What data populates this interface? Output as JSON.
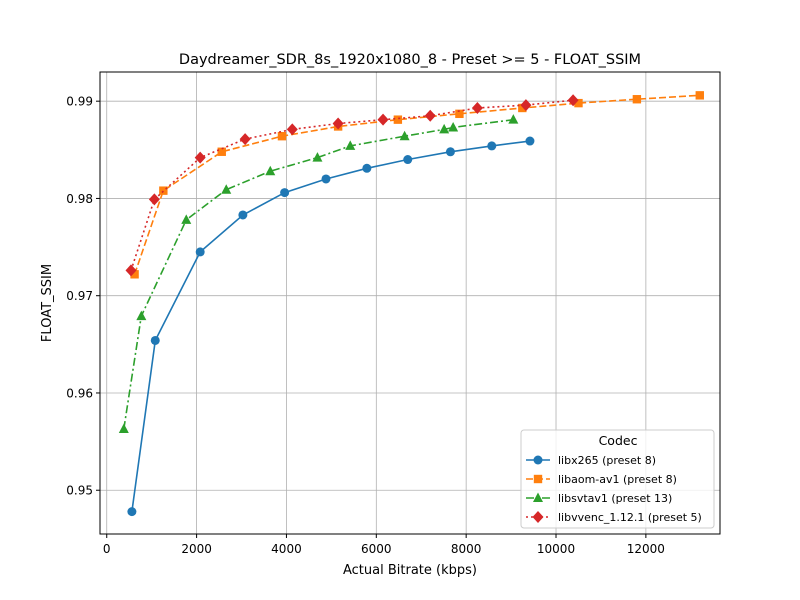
{
  "chart_data": {
    "type": "line",
    "title": "Daydreamer_SDR_8s_1920x1080_8 - Preset >= 5 - FLOAT_SSIM",
    "xlabel": "Actual Bitrate (kbps)",
    "ylabel": "FLOAT_SSIM",
    "xlim": [
      -150,
      13650
    ],
    "ylim": [
      0.9455,
      0.993
    ],
    "xticks": [
      0,
      2000,
      4000,
      6000,
      8000,
      10000,
      12000
    ],
    "yticks": [
      0.95,
      0.96,
      0.97,
      0.98,
      0.99
    ],
    "ytick_labels": [
      "0.95",
      "0.96",
      "0.97",
      "0.98",
      "0.99"
    ],
    "grid": true,
    "legend": {
      "title": "Codec",
      "placement": "lower right"
    },
    "series": [
      {
        "name": "libx265 (preset 8)",
        "color": "#1f77b4",
        "marker": "circle",
        "linestyle": "solid",
        "x": [
          560,
          1080,
          2080,
          3030,
          3960,
          4880,
          5790,
          6700,
          7650,
          8570,
          9420
        ],
        "y": [
          0.9478,
          0.9654,
          0.9745,
          0.9783,
          0.9806,
          0.982,
          0.9831,
          0.984,
          0.9848,
          0.9854,
          0.9859
        ]
      },
      {
        "name": "libaom-av1 (preset 8)",
        "color": "#ff7f0e",
        "marker": "square",
        "linestyle": "dashed",
        "x": [
          620,
          1260,
          2560,
          3900,
          5150,
          6480,
          7850,
          9250,
          10500,
          11800,
          13200
        ],
        "y": [
          0.9722,
          0.9808,
          0.9848,
          0.9864,
          0.9874,
          0.9881,
          0.9887,
          0.9893,
          0.9898,
          0.9902,
          0.9906
        ]
      },
      {
        "name": "libsvtav1 (preset 13)",
        "color": "#2ca02c",
        "marker": "triangle",
        "linestyle": "dashdot",
        "x": [
          380,
          770,
          1770,
          2660,
          3640,
          4690,
          5420,
          6630,
          7510,
          7710,
          9050
        ],
        "y": [
          0.9563,
          0.9679,
          0.9778,
          0.9809,
          0.9828,
          0.9842,
          0.9854,
          0.9864,
          0.9871,
          0.9873,
          0.9881
        ]
      },
      {
        "name": "libvvenc_1.12.1 (preset 5)",
        "color": "#d62728",
        "marker": "diamond",
        "linestyle": "dotted",
        "x": [
          540,
          1060,
          2080,
          3080,
          4130,
          5150,
          6150,
          7200,
          8250,
          9330,
          10380
        ],
        "y": [
          0.9726,
          0.9799,
          0.9842,
          0.9861,
          0.9871,
          0.9877,
          0.9881,
          0.9885,
          0.9893,
          0.9896,
          0.9901
        ]
      }
    ]
  }
}
